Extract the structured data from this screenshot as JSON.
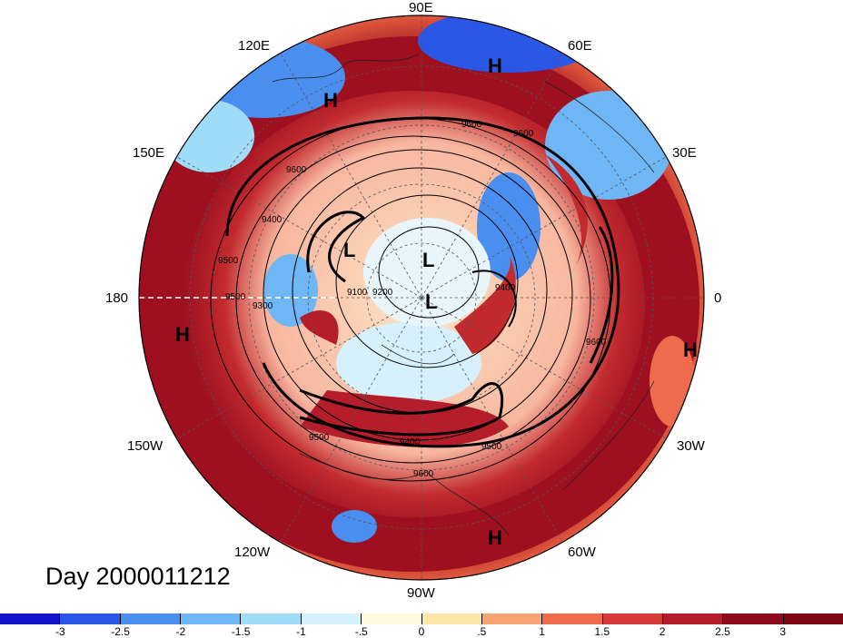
{
  "map": {
    "projection": "north polar stereographic",
    "center": "North Pole",
    "longitude_labels": [
      "90E",
      "120E",
      "60E",
      "150E",
      "30E",
      "180",
      "0",
      "150W",
      "30W",
      "120W",
      "60W",
      "90W"
    ],
    "pressure_systems": [
      {
        "type": "H",
        "region": "Eastern Asia, near 115E"
      },
      {
        "type": "H",
        "region": "Central Asia, near 65E"
      },
      {
        "type": "H",
        "region": "North Pacific, near 170W"
      },
      {
        "type": "H",
        "region": "North Africa / Atlantic, near 5W"
      },
      {
        "type": "H",
        "region": "Caribbean / South America, near 65W"
      },
      {
        "type": "L",
        "region": "Bering Strait"
      },
      {
        "type": "L",
        "region": "Siberian Arctic"
      },
      {
        "type": "L",
        "region": "Arctic Ocean near pole"
      }
    ],
    "contour_labels": [
      "9600",
      "9600",
      "9600",
      "9400",
      "9500",
      "9500",
      "9300",
      "9400",
      "9500",
      "9400",
      "9500",
      "9600",
      "9600",
      "9100",
      "9200"
    ],
    "shading_colors": [
      "#1414c8",
      "#2b57e6",
      "#4a8ef0",
      "#6fb6f4",
      "#9fdcf8",
      "#d6f1fb",
      "#fffbe0",
      "#fde7a8",
      "#f7a472",
      "#ee6b4e",
      "#d93a3a",
      "#b51d2a",
      "#8e0b1c"
    ]
  },
  "title": "Day 2000011212",
  "colorbar": {
    "ticks": [
      "-3",
      "-2.5",
      "-2",
      "-1.5",
      "-1",
      "-.5",
      "0",
      ".5",
      "1",
      "1.5",
      "2",
      "2.5",
      "3"
    ],
    "colors": [
      "#1414c8",
      "#2b57e6",
      "#4a8ef0",
      "#6fb6f4",
      "#9fdcf8",
      "#d6f1fb",
      "#fffbe0",
      "#fde7a8",
      "#f7a472",
      "#ee6b4e",
      "#d93a3a",
      "#b51d2a",
      "#8e0b1c",
      "#7a0712"
    ]
  }
}
